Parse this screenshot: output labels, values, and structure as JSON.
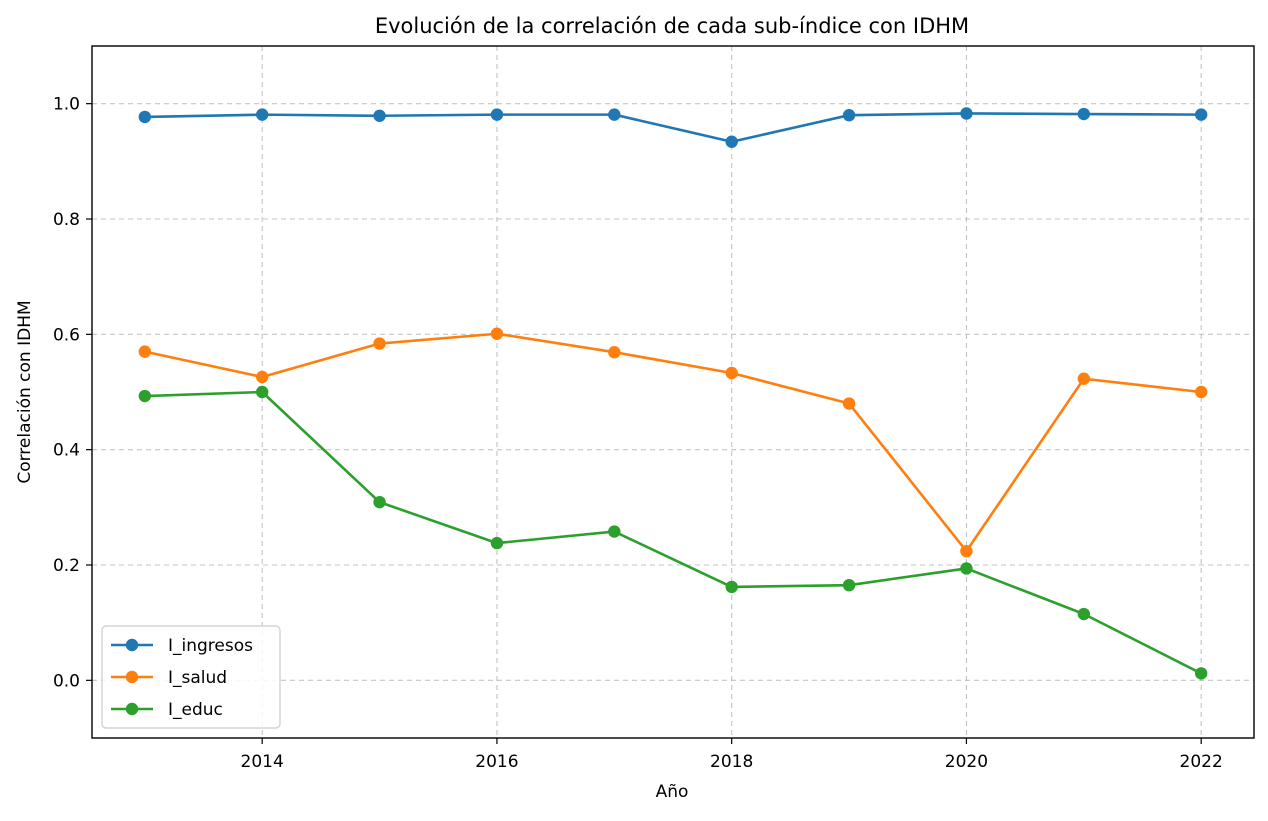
{
  "chart_data": {
    "type": "line",
    "title": "Evolución de la correlación de cada sub-índice con IDHM",
    "xlabel": "Año",
    "ylabel": "Correlación con IDHM",
    "x": [
      2013,
      2014,
      2015,
      2016,
      2017,
      2018,
      2019,
      2020,
      2021,
      2022
    ],
    "xlim": [
      2012.55,
      2022.45
    ],
    "ylim": [
      -0.1,
      1.1
    ],
    "xticks": [
      2014,
      2016,
      2018,
      2020,
      2022
    ],
    "xtick_labels": [
      "2014",
      "2016",
      "2018",
      "2020",
      "2022"
    ],
    "yticks": [
      0.0,
      0.2,
      0.4,
      0.6,
      0.8,
      1.0
    ],
    "ytick_labels": [
      "0.0",
      "0.2",
      "0.4",
      "0.6",
      "0.8",
      "1.0"
    ],
    "grid": true,
    "legend_position": "lower-left",
    "marker": "circle",
    "series": [
      {
        "name": "I_ingresos",
        "color": "#1f77b4",
        "values": [
          0.977,
          0.981,
          0.979,
          0.981,
          0.981,
          0.934,
          0.98,
          0.983,
          0.982,
          0.981
        ]
      },
      {
        "name": "I_salud",
        "color": "#ff7f0e",
        "values": [
          0.57,
          0.526,
          0.584,
          0.601,
          0.569,
          0.533,
          0.48,
          0.224,
          0.523,
          0.5
        ]
      },
      {
        "name": "I_educ",
        "color": "#2ca02c",
        "values": [
          0.493,
          0.5,
          0.309,
          0.238,
          0.258,
          0.162,
          0.165,
          0.194,
          0.115,
          0.012
        ]
      }
    ]
  }
}
